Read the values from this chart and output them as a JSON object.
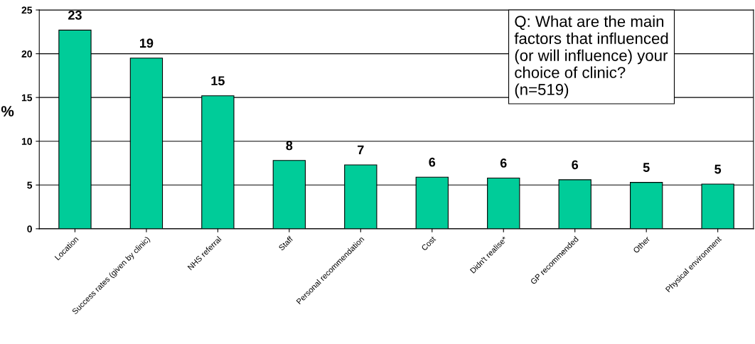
{
  "chart_data": {
    "type": "bar",
    "ylabel": "%",
    "categories": [
      "Location",
      "Success rates (given by clinic)",
      "NHS referral",
      "Staff",
      "Personal recommendation",
      "Cost",
      "Didn't realise*",
      "GP recommended",
      "Other",
      "Physical environment"
    ],
    "values": [
      22.7,
      19.5,
      15.2,
      7.8,
      7.3,
      5.9,
      5.8,
      5.6,
      5.3,
      5.1
    ],
    "value_labels": [
      "23",
      "19",
      "15",
      "8",
      "7",
      "6",
      "6",
      "6",
      "5",
      "5"
    ],
    "color": "#00cc99",
    "ylim": [
      0,
      25
    ],
    "yticks": [
      0,
      5,
      10,
      15,
      20,
      25
    ],
    "grid": "y",
    "annotations": [
      "Q: What are the main\nfactors that influenced\n(or will influence) your\nchoice of clinic?\n(n=519)"
    ]
  }
}
